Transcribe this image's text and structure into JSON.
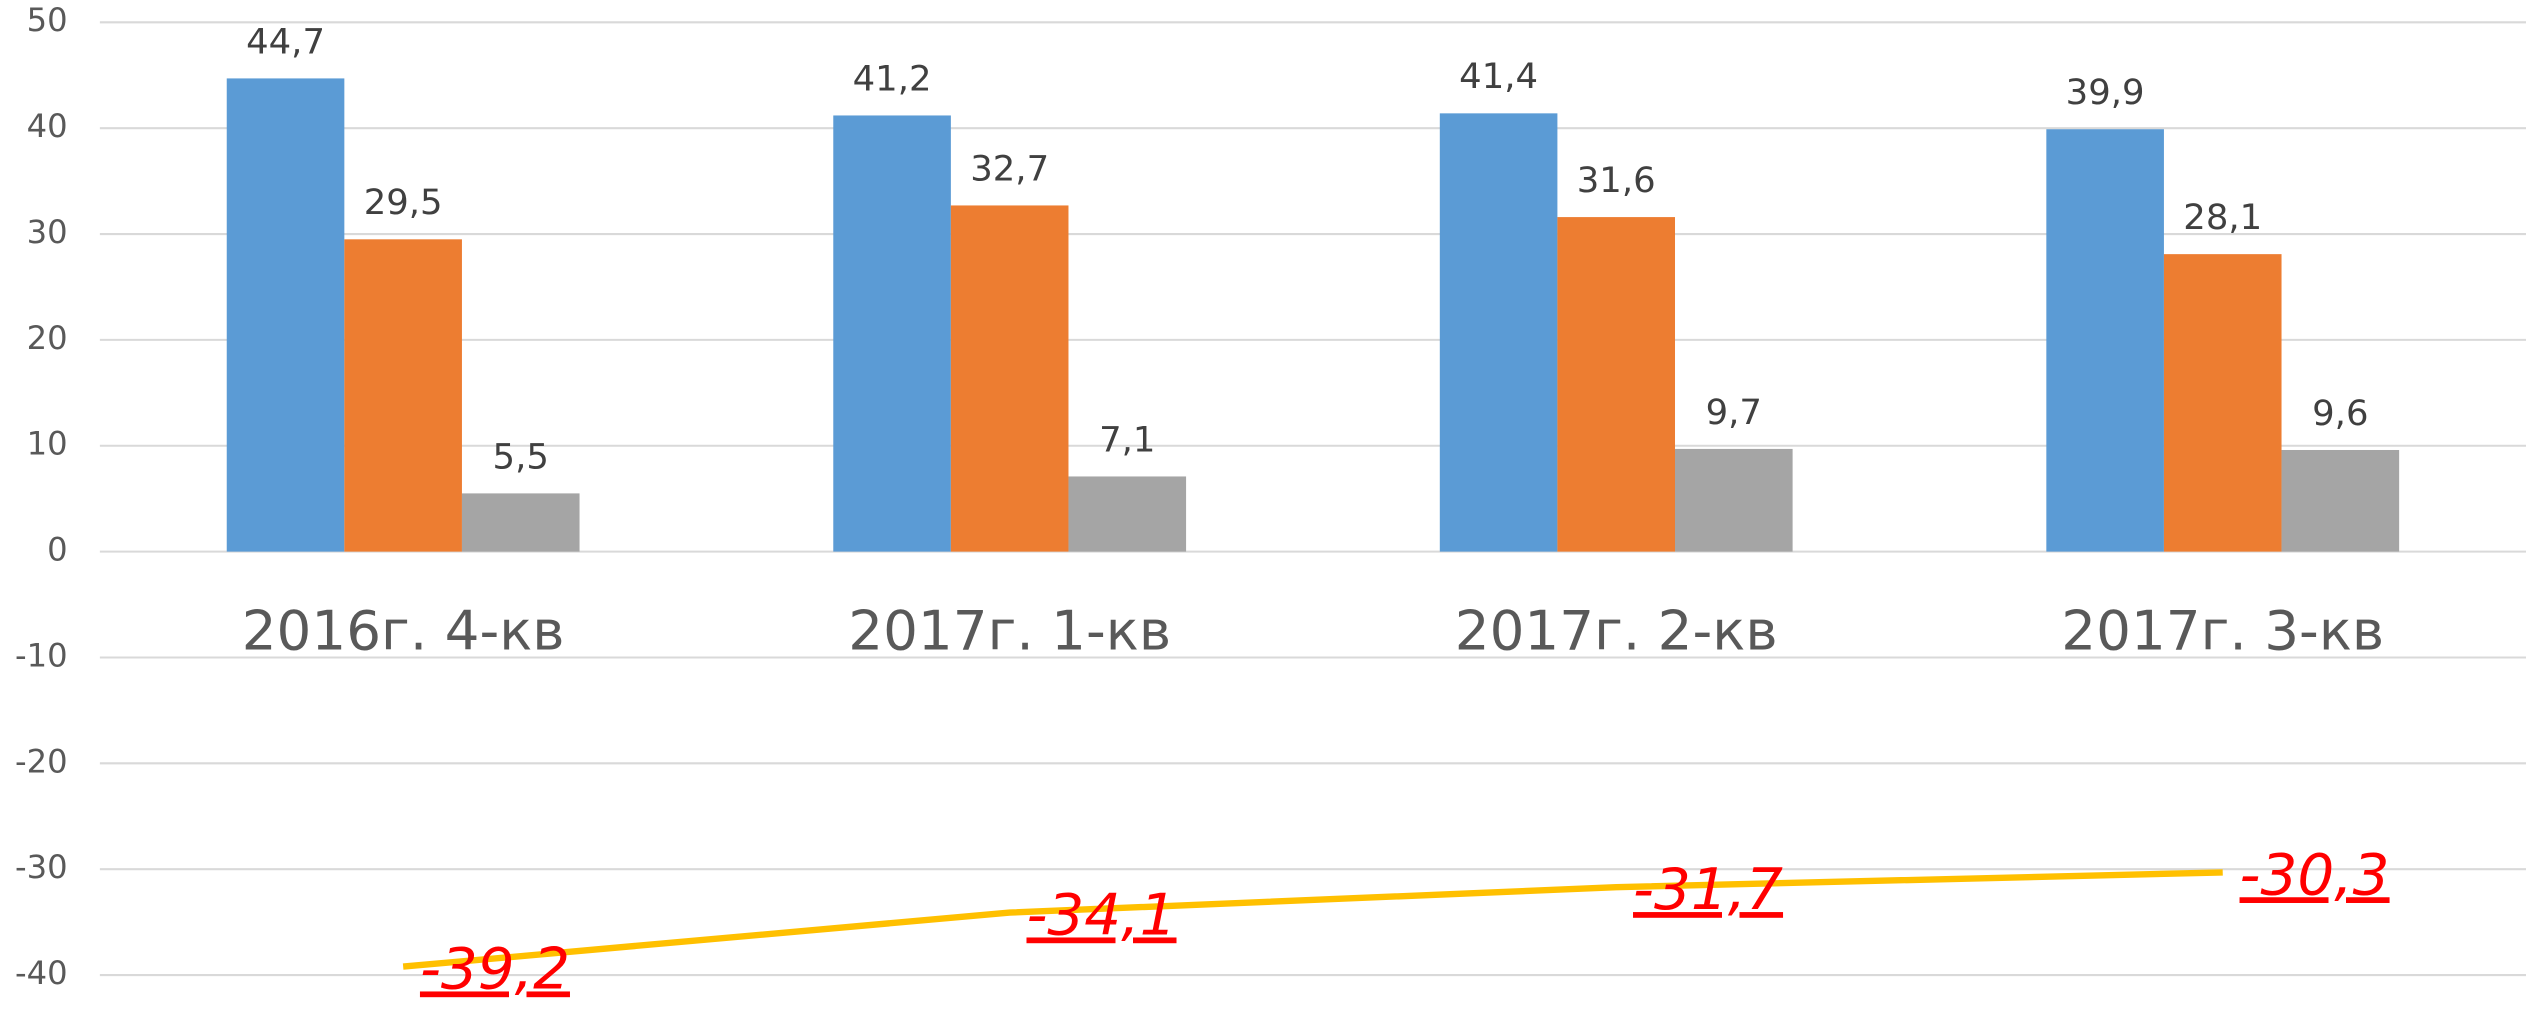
{
  "chart_data": {
    "type": "bar",
    "categories": [
      "2016г. 4-кв",
      "2017г. 1-кв",
      "2017г. 2-кв",
      "2017г. 3-кв"
    ],
    "series": [
      {
        "color": "#5b9bd5",
        "values": [
          44.7,
          41.2,
          41.4,
          39.9
        ],
        "value_labels": [
          "44,7",
          "41,2",
          "41,4",
          "39,9"
        ]
      },
      {
        "color": "#ed7d31",
        "values": [
          29.5,
          32.7,
          31.6,
          28.1
        ],
        "value_labels": [
          "29,5",
          "32,7",
          "31,6",
          "28,1"
        ]
      },
      {
        "color": "#a5a5a5",
        "values": [
          5.5,
          7.1,
          9.7,
          9.6
        ],
        "value_labels": [
          "5,5",
          "7,1",
          "9,7",
          "9,6"
        ]
      },
      {
        "type": "line",
        "color": "#ffc000",
        "label_color": "#ff0000",
        "values": [
          -39.2,
          -34.1,
          -31.7,
          -30.3
        ],
        "value_labels": [
          "-39,2",
          "-34,1",
          "-31,7",
          "-30,3"
        ]
      }
    ],
    "ylim": [
      -43.3,
      50
    ],
    "yticks": [
      50,
      40,
      30,
      20,
      10,
      0,
      -10,
      -20,
      -30,
      -40
    ],
    "grid": true
  }
}
